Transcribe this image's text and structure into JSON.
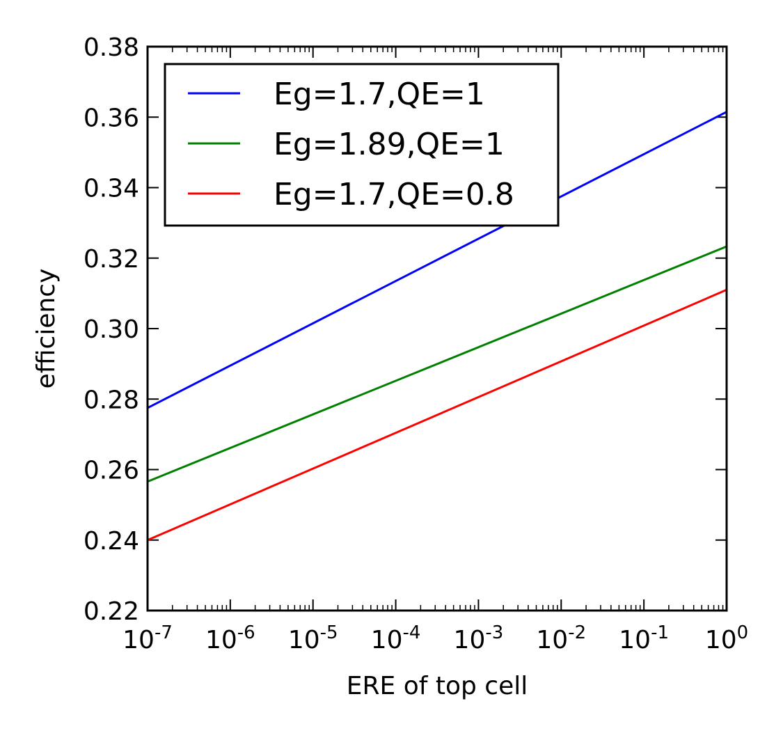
{
  "chart_data": {
    "type": "line",
    "title": "",
    "xlabel": "ERE of top cell",
    "ylabel": "efficiency",
    "xscale": "log",
    "xlim": [
      1e-07,
      1
    ],
    "ylim": [
      0.22,
      0.38
    ],
    "grid": false,
    "legend_position": "upper-left",
    "x_ticks": [
      {
        "value": 1e-07,
        "base": "10",
        "exp": "-7"
      },
      {
        "value": 1e-06,
        "base": "10",
        "exp": "-6"
      },
      {
        "value": 1e-05,
        "base": "10",
        "exp": "-5"
      },
      {
        "value": 0.0001,
        "base": "10",
        "exp": "-4"
      },
      {
        "value": 0.001,
        "base": "10",
        "exp": "-3"
      },
      {
        "value": 0.01,
        "base": "10",
        "exp": "-2"
      },
      {
        "value": 0.1,
        "base": "10",
        "exp": "-1"
      },
      {
        "value": 1,
        "base": "10",
        "exp": "0"
      }
    ],
    "y_ticks": [
      {
        "value": 0.22,
        "label": "0.22"
      },
      {
        "value": 0.24,
        "label": "0.24"
      },
      {
        "value": 0.26,
        "label": "0.26"
      },
      {
        "value": 0.28,
        "label": "0.28"
      },
      {
        "value": 0.3,
        "label": "0.30"
      },
      {
        "value": 0.32,
        "label": "0.32"
      },
      {
        "value": 0.34,
        "label": "0.34"
      },
      {
        "value": 0.36,
        "label": "0.36"
      },
      {
        "value": 0.38,
        "label": "0.38"
      }
    ],
    "series": [
      {
        "name": "Eg=1.7,QE=1",
        "color": "#0000ff",
        "x": [
          1e-07,
          1
        ],
        "y": [
          0.2775,
          0.3615
        ]
      },
      {
        "name": "Eg=1.89,QE=1",
        "color": "#008000",
        "x": [
          1e-07,
          1
        ],
        "y": [
          0.2566,
          0.3233
        ]
      },
      {
        "name": "Eg=1.7,QE=0.8",
        "color": "#ff0000",
        "x": [
          1e-07,
          1
        ],
        "y": [
          0.24,
          0.311
        ]
      }
    ]
  }
}
